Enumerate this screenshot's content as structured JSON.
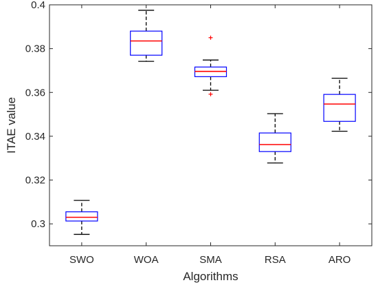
{
  "chart_data": {
    "type": "boxplot",
    "xlabel": "Algorithms",
    "ylabel": "ITAE value",
    "ylim": [
      0.29,
      0.4
    ],
    "yticks": [
      0.3,
      0.32,
      0.34,
      0.36,
      0.38,
      0.4
    ],
    "ytick_labels": [
      "0.3",
      "0.32",
      "0.34",
      "0.36",
      "0.38",
      "0.4"
    ],
    "categories": [
      "SWO",
      "WOA",
      "SMA",
      "RSA",
      "ARO"
    ],
    "boxes": [
      {
        "name": "SWO",
        "whisker_low": 0.2952,
        "q1": 0.3013,
        "median": 0.303,
        "q3": 0.3055,
        "whisker_high": 0.3107,
        "outliers": []
      },
      {
        "name": "WOA",
        "whisker_low": 0.3742,
        "q1": 0.377,
        "median": 0.3835,
        "q3": 0.388,
        "whisker_high": 0.3975,
        "outliers": []
      },
      {
        "name": "SMA",
        "whisker_low": 0.361,
        "q1": 0.3672,
        "median": 0.3696,
        "q3": 0.3716,
        "whisker_high": 0.3748,
        "outliers": [
          0.385,
          0.3592
        ]
      },
      {
        "name": "RSA",
        "whisker_low": 0.3278,
        "q1": 0.333,
        "median": 0.3362,
        "q3": 0.3415,
        "whisker_high": 0.3503,
        "outliers": []
      },
      {
        "name": "ARO",
        "whisker_low": 0.3423,
        "q1": 0.3468,
        "median": 0.3547,
        "q3": 0.3591,
        "whisker_high": 0.3665,
        "outliers": []
      }
    ],
    "colors": {
      "box": "#0000ff",
      "median": "#ff0000",
      "whisker": "#000000",
      "outlier": "#ff0000",
      "axis": "#262626"
    },
    "grid": false,
    "legend": "none"
  }
}
